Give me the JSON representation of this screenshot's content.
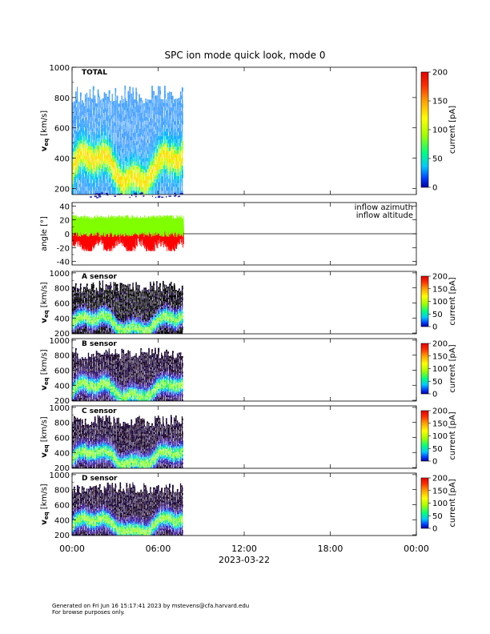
{
  "title": "SPC ion mode quick look, mode 0",
  "footer": {
    "line1": "Generated on Fri Jun 16 15:17:41 2023 by mstevens@cfa.harvard.edu",
    "line2": "For browse purposes only."
  },
  "chart_data": [
    {
      "type": "heatmap",
      "panel": "TOTAL",
      "label": "TOTAL",
      "ylabel": "v_eq [km/s]",
      "ylim": [
        160,
        1000
      ],
      "yticks": [
        "200",
        "400",
        "600",
        "800",
        "1000"
      ],
      "x_data_range": [
        "00:00",
        "07:45"
      ],
      "colorbar": {
        "label": "current [pA]",
        "range": [
          0,
          200
        ],
        "ticks": [
          "0",
          "50",
          "100",
          "150",
          "200"
        ]
      },
      "palette": "blue-white background, green/yellow peak near 300-400 km/s"
    },
    {
      "type": "line",
      "panel": "angles",
      "ylabel": "angle [°]",
      "ylim": [
        -45,
        45
      ],
      "yticks": [
        "-40",
        "-20",
        "0",
        "20",
        "40"
      ],
      "series": [
        {
          "name": "inflow azimuth",
          "color": "#ff0000",
          "range": [
            -25,
            22
          ]
        },
        {
          "name": "inflow altitude",
          "color": "#7fff00",
          "range": [
            -5,
            27
          ]
        }
      ],
      "x_data_range": [
        "00:00",
        "07:45"
      ],
      "zero_line_after": "07:45"
    },
    {
      "type": "heatmap",
      "panel": "A",
      "label": "A sensor",
      "ylabel": "v_eq [km/s]",
      "ylim": [
        190,
        1020
      ],
      "yticks": [
        "200",
        "400",
        "600",
        "800",
        "1000"
      ],
      "colorbar": {
        "label": "current [pA]",
        "range": [
          0,
          200
        ],
        "ticks": [
          "0",
          "50",
          "100",
          "150",
          "200"
        ]
      }
    },
    {
      "type": "heatmap",
      "panel": "B",
      "label": "B sensor",
      "ylabel": "v_eq [km/s]",
      "ylim": [
        190,
        1020
      ],
      "yticks": [
        "200",
        "400",
        "600",
        "800",
        "1000"
      ],
      "colorbar": {
        "label": "current [pA]",
        "range": [
          0,
          200
        ],
        "ticks": [
          "0",
          "50",
          "100",
          "150",
          "200"
        ]
      }
    },
    {
      "type": "heatmap",
      "panel": "C",
      "label": "C sensor",
      "ylabel": "v_eq [km/s]",
      "ylim": [
        190,
        1020
      ],
      "yticks": [
        "200",
        "400",
        "600",
        "800",
        "1000"
      ],
      "colorbar": {
        "label": "current [pA]",
        "range": [
          0,
          200
        ],
        "ticks": [
          "0",
          "50",
          "100",
          "150",
          "200"
        ]
      }
    },
    {
      "type": "heatmap",
      "panel": "D",
      "label": "D sensor",
      "ylabel": "v_eq [km/s]",
      "ylim": [
        190,
        1020
      ],
      "yticks": [
        "200",
        "400",
        "600",
        "800",
        "1000"
      ],
      "colorbar": {
        "label": "current [pA]",
        "range": [
          0,
          200
        ],
        "ticks": [
          "0",
          "50",
          "100",
          "150",
          "200"
        ]
      }
    }
  ],
  "xaxis": {
    "ticks": [
      "00:00",
      "06:00",
      "12:00",
      "18:00",
      "00:00"
    ],
    "date_label": "2023-03-22"
  }
}
